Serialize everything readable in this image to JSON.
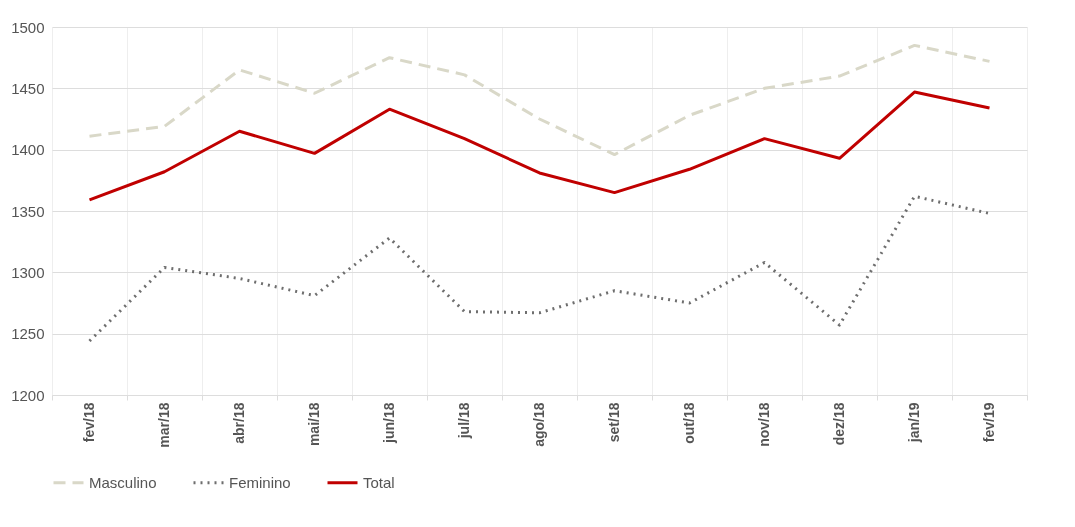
{
  "chart_data": {
    "type": "line",
    "categories": [
      "fev/18",
      "mar/18",
      "abr/18",
      "mai/18",
      "jun/18",
      "jul/18",
      "ago/18",
      "set/18",
      "out/18",
      "nov/18",
      "dez/18",
      "jan/19",
      "fev/19"
    ],
    "series": [
      {
        "name": "Masculino",
        "color": "#d9d8c8",
        "line_style": "dashed",
        "values": [
          1411,
          1419,
          1465,
          1446,
          1475,
          1461,
          1425,
          1396,
          1428,
          1450,
          1460,
          1485,
          1472
        ]
      },
      {
        "name": "Feminino",
        "color": "#6e6e6e",
        "line_style": "dotted",
        "values": [
          1244,
          1304,
          1295,
          1281,
          1328,
          1268,
          1267,
          1285,
          1275,
          1308,
          1257,
          1362,
          1348
        ]
      },
      {
        "name": "Total",
        "color": "#c00000",
        "line_style": "solid",
        "values": [
          1359,
          1382,
          1415,
          1397,
          1433,
          1409,
          1381,
          1365,
          1384,
          1409,
          1393,
          1447,
          1434
        ]
      }
    ],
    "ylim": [
      1200,
      1500
    ],
    "yticks": [
      1200,
      1250,
      1300,
      1350,
      1400,
      1450,
      1500
    ],
    "grid": true,
    "legend": "bottom"
  }
}
